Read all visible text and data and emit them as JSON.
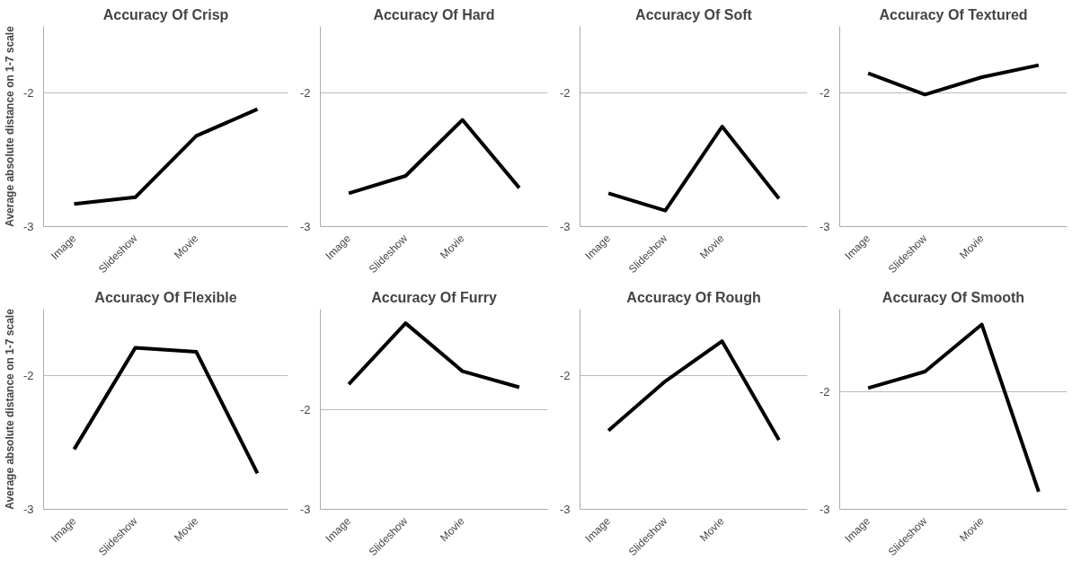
{
  "chart_data": [
    {
      "type": "line",
      "title": "Accuracy Of Crisp",
      "ylabel": "Average absolute distance on 1-7 scale",
      "categories": [
        "Image",
        "Slideshow",
        "Movie",
        null
      ],
      "series": [
        {
          "color": "#000000",
          "values": [
            -2.83,
            -2.78,
            -2.32,
            -2.12
          ]
        }
      ],
      "ylim": [
        -3,
        -1.5
      ],
      "yticks": [
        -3,
        -2
      ],
      "grid": "y",
      "marker": "none",
      "line_style": "solid"
    },
    {
      "type": "line",
      "title": "Accuracy Of Hard",
      "categories": [
        "Image",
        "Slideshow",
        "Movie",
        null
      ],
      "series": [
        {
          "color": "#000000",
          "values": [
            -2.75,
            -2.62,
            -2.2,
            -2.71
          ]
        }
      ],
      "ylim": [
        -3,
        -1.5
      ],
      "yticks": [
        -3,
        -2
      ],
      "grid": "y",
      "marker": "none",
      "line_style": "solid"
    },
    {
      "type": "line",
      "title": "Accuracy Of Soft",
      "categories": [
        "Image",
        "Slideshow",
        "Movie",
        null
      ],
      "series": [
        {
          "color": "#000000",
          "values": [
            -2.75,
            -2.88,
            -2.25,
            -2.79
          ]
        }
      ],
      "ylim": [
        -3,
        -1.5
      ],
      "yticks": [
        -3,
        -2
      ],
      "grid": "y",
      "marker": "none",
      "line_style": "solid"
    },
    {
      "type": "line",
      "title": "Accuracy Of Textured",
      "categories": [
        "Image",
        "Slideshow",
        "Movie",
        null
      ],
      "series": [
        {
          "color": "#000000",
          "values": [
            -1.85,
            -2.01,
            -1.88,
            -1.79
          ]
        }
      ],
      "ylim": [
        -3,
        -1.5
      ],
      "yticks": [
        -3,
        -2
      ],
      "grid": "y",
      "marker": "none",
      "line_style": "solid"
    },
    {
      "type": "line",
      "title": "Accuracy Of Flexible",
      "ylabel": "Average absolute distance on 1-7 scale",
      "categories": [
        "Image",
        "Slideshow",
        "Movie",
        null
      ],
      "series": [
        {
          "color": "#000000",
          "values": [
            -2.55,
            -1.79,
            -1.82,
            -2.73
          ]
        }
      ],
      "ylim": [
        -3,
        -1.5
      ],
      "yticks": [
        -3,
        -2
      ],
      "grid": "y",
      "marker": "none",
      "line_style": "solid"
    },
    {
      "type": "line",
      "title": "Accuracy Of Furry",
      "categories": [
        "Image",
        "Slideshow",
        "Movie",
        null
      ],
      "series": [
        {
          "color": "#000000",
          "values": [
            -1.75,
            -1.14,
            -1.62,
            -1.78
          ]
        }
      ],
      "ylim": [
        -3,
        -1
      ],
      "yticks": [
        -3,
        -2
      ],
      "grid": "y",
      "marker": "none",
      "line_style": "solid"
    },
    {
      "type": "line",
      "title": "Accuracy Of Rough",
      "categories": [
        "Image",
        "Slideshow",
        "Movie",
        null
      ],
      "series": [
        {
          "color": "#000000",
          "values": [
            -2.41,
            -2.04,
            -1.74,
            -2.48
          ]
        }
      ],
      "ylim": [
        -3,
        -1.5
      ],
      "yticks": [
        -3,
        -2
      ],
      "grid": "y",
      "marker": "none",
      "line_style": "solid"
    },
    {
      "type": "line",
      "title": "Accuracy Of Smooth",
      "categories": [
        "Image",
        "Slideshow",
        "Movie",
        null
      ],
      "series": [
        {
          "color": "#000000",
          "values": [
            -1.97,
            -1.83,
            -1.43,
            -2.85
          ]
        }
      ],
      "ylim": [
        -3,
        -1.3
      ],
      "yticks": [
        -3,
        -2
      ],
      "grid": "y",
      "marker": "none",
      "line_style": "solid"
    }
  ]
}
